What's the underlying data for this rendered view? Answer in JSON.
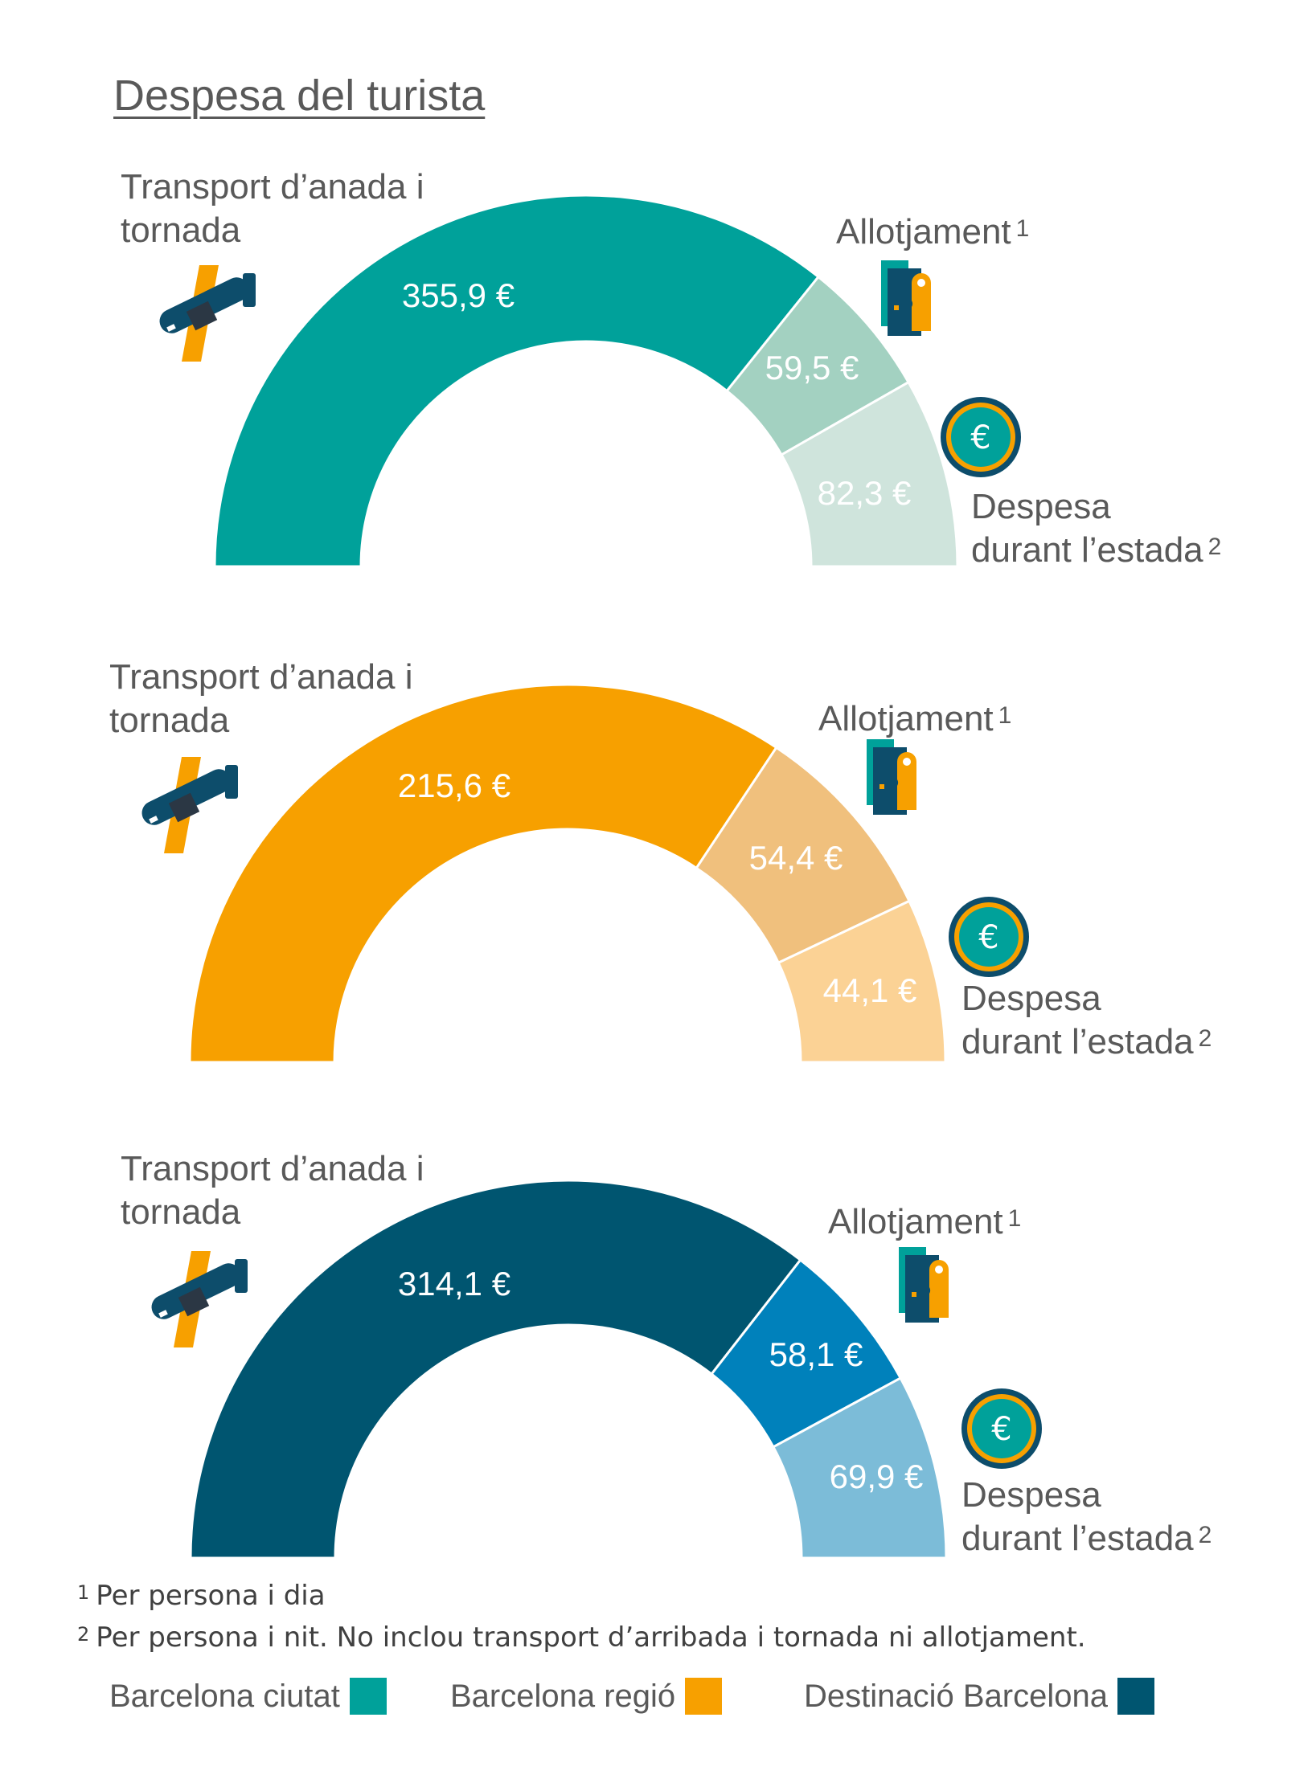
{
  "title": "Despesa del turista",
  "chart_data": [
    {
      "type": "donut-half",
      "series_name": "Barcelona ciutat",
      "categories": [
        "Transport d’anada i tornada",
        "Allotjament ¹",
        "Despesa durant l’estada ²"
      ],
      "values": [
        355.9,
        59.5,
        82.3
      ],
      "value_labels": [
        "355,9 €",
        "59,5 €",
        "82,3 €"
      ],
      "colors": [
        "#00A19A",
        "#A3D1C1",
        "#CFE4DC"
      ]
    },
    {
      "type": "donut-half",
      "series_name": "Barcelona regió",
      "categories": [
        "Transport d’anada i tornada",
        "Allotjament ¹",
        "Despesa durant l’estada ²"
      ],
      "values": [
        215.6,
        54.4,
        44.1
      ],
      "value_labels": [
        "215,6 €",
        "54,4 €",
        "44,1 €"
      ],
      "colors": [
        "#F7A000",
        "#F0C07D",
        "#FBD295"
      ]
    },
    {
      "type": "donut-half",
      "series_name": "Destinació Barcelona",
      "categories": [
        "Transport d’anada i tornada",
        "Allotjament ¹",
        "Despesa durant l’estada ²"
      ],
      "values": [
        314.1,
        58.1,
        69.9
      ],
      "value_labels": [
        "314,1 €",
        "58,1 €",
        "69,9 €"
      ],
      "colors": [
        "#005570",
        "#0081BB",
        "#7CBCD8"
      ]
    }
  ],
  "labels": {
    "transport_line1": "Transport d’anada i",
    "transport_line2": "tornada",
    "allotjament": "Allotjament",
    "allotjament_sup": "1",
    "despesa_line1": "Despesa",
    "despesa_line2": "durant l’estada",
    "despesa_sup": "2"
  },
  "icons": {
    "plane": "plane-icon",
    "accommodation": "door-hanger-icon",
    "expense": "euro-coin-icon",
    "euro_symbol": "€"
  },
  "footnotes": {
    "n1_mark": "1",
    "n1_text": "Per persona i dia",
    "n2_mark": "2",
    "n2_text": "Per persona i nit. No inclou transport d’arribada i tornada ni allotjament."
  },
  "legend": [
    {
      "label": "Barcelona ciutat",
      "color": "#00A19A"
    },
    {
      "label": "Barcelona regió",
      "color": "#F7A000"
    },
    {
      "label": "Destinació Barcelona",
      "color": "#005570"
    }
  ]
}
